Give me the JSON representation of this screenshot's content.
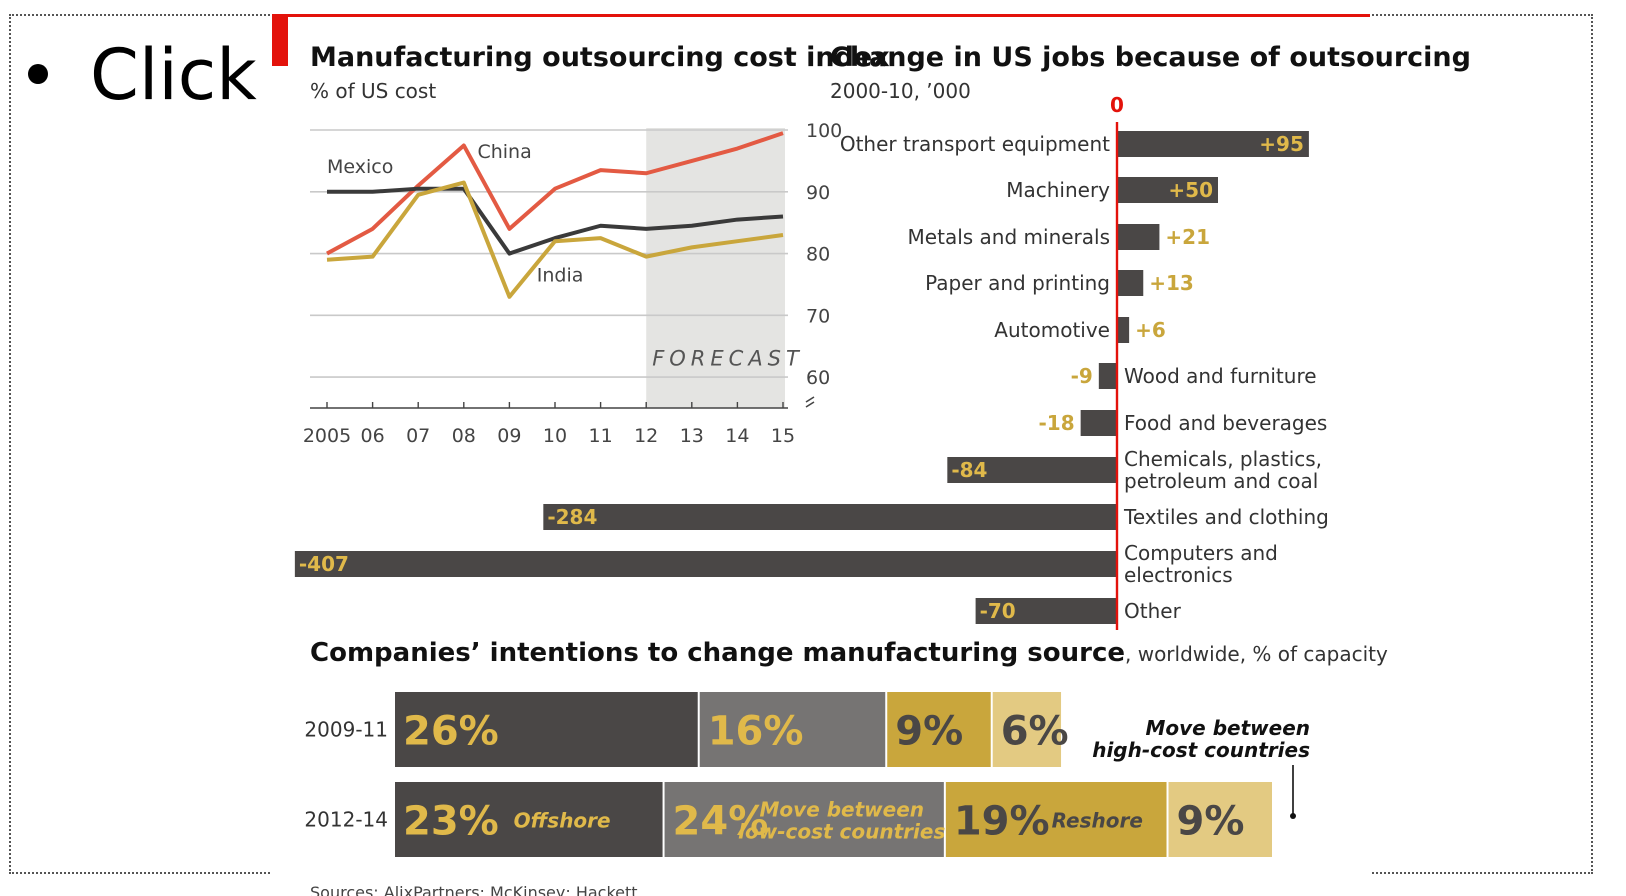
{
  "slide": {
    "bullet_text": "Click t"
  },
  "chart_data": [
    {
      "type": "line",
      "title": "Manufacturing outsourcing cost index",
      "subtitle": "% of US cost",
      "x": [
        2005,
        2006,
        2007,
        2008,
        2009,
        2010,
        2011,
        2012,
        2013,
        2014,
        2015
      ],
      "x_tick_labels": [
        "2005",
        "06",
        "07",
        "08",
        "09",
        "10",
        "11",
        "12",
        "13",
        "14",
        "15"
      ],
      "y_ticks": [
        60,
        70,
        80,
        90,
        100
      ],
      "ylim": [
        55,
        100
      ],
      "axis_side": "right",
      "forecast": {
        "label": "FORECAST",
        "from": 2012,
        "to": 2015
      },
      "series": [
        {
          "name": "China",
          "color": "#e35a43",
          "values": [
            80,
            84,
            91,
            97.5,
            84,
            90.5,
            93.5,
            93,
            95,
            97,
            99.5
          ]
        },
        {
          "name": "Mexico",
          "color": "#3a3a3a",
          "values": [
            90,
            90,
            90.5,
            90.5,
            80,
            82.5,
            84.5,
            84,
            84.5,
            85.5,
            86
          ]
        },
        {
          "name": "India",
          "color": "#c9a63c",
          "values": [
            79,
            79.5,
            89.5,
            91.5,
            73,
            82,
            82.5,
            79.5,
            81,
            82,
            83
          ]
        }
      ]
    },
    {
      "type": "bar",
      "orientation": "horizontal",
      "title": "Change in US jobs because of outsourcing",
      "subtitle": "2000-10, ’000",
      "zero_label": "0",
      "categories": [
        [
          "Other transport equipment"
        ],
        [
          "Machinery"
        ],
        [
          "Metals and minerals"
        ],
        [
          "Paper and printing"
        ],
        [
          "Automotive"
        ],
        [
          "Wood and furniture"
        ],
        [
          "Food and beverages"
        ],
        [
          "Chemicals, plastics,",
          "petroleum and coal"
        ],
        [
          "Textiles and clothing"
        ],
        [
          "Computers and",
          "electronics"
        ],
        [
          "Other"
        ]
      ],
      "values": [
        95,
        50,
        21,
        13,
        6,
        -9,
        -18,
        -84,
        -284,
        -407,
        -70
      ],
      "value_labels": [
        "+95",
        "+50",
        "+21",
        "+13",
        "+6",
        "-9",
        "-18",
        "-84",
        "-284",
        "-407",
        "-70"
      ]
    },
    {
      "type": "bar",
      "orientation": "horizontal-stacked",
      "title": "Companies’ intentions to change manufacturing source",
      "subtitle": ", worldwide, % of capacity",
      "categories": [
        "2009-11",
        "2012-14"
      ],
      "series": [
        {
          "name": "Offshore",
          "color": "#4a4746",
          "values": [
            26,
            23
          ],
          "labels": [
            "26%",
            "23%"
          ]
        },
        {
          "name": "Move between low-cost countries",
          "name_lines": [
            "Move between",
            "low-cost countries"
          ],
          "color": "#767473",
          "values": [
            16,
            24
          ],
          "labels": [
            "16%",
            "24%"
          ]
        },
        {
          "name": "Reshore",
          "color": "#c9a63c",
          "values": [
            9,
            19
          ],
          "labels": [
            "9%",
            "19%"
          ]
        },
        {
          "name": "Move between high-cost countries",
          "name_lines": [
            "Move between",
            "high-cost countries"
          ],
          "color": "#e3ca82",
          "values": [
            6,
            9
          ],
          "labels": [
            "6%",
            "9%"
          ]
        }
      ]
    }
  ],
  "source": "Sources: AlixPartners; McKinsey; Hackett"
}
